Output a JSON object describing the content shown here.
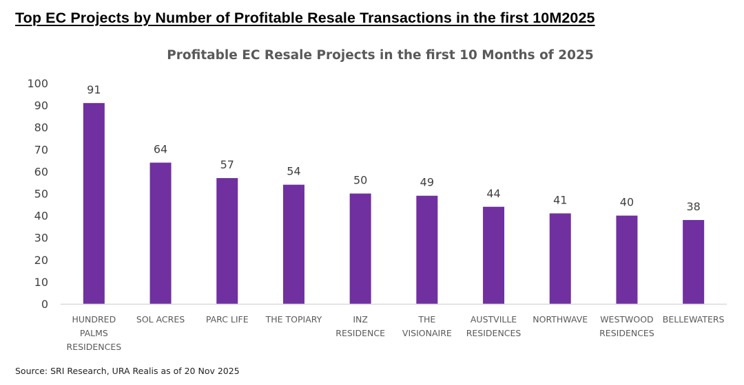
{
  "page_title": "Top EC Projects by Number of Profitable Resale Transactions in the first 10M2025",
  "source": "Source: SRI Research, URA Realis as of 20 Nov 2025",
  "colors": {
    "bar": "#7030a0",
    "axis": "#d9d9d9"
  },
  "chart_data": {
    "type": "bar",
    "title": "Profitable EC Resale Projects in the first 10 Months of 2025",
    "xlabel": "",
    "ylabel": "",
    "ylim": [
      0,
      100
    ],
    "yticks": [
      0,
      10,
      20,
      30,
      40,
      50,
      60,
      70,
      80,
      90,
      100
    ],
    "grid": false,
    "legend": "none",
    "categories": [
      "HUNDRED PALMS RESIDENCES",
      "SOL ACRES",
      "PARC LIFE",
      "THE TOPIARY",
      "INZ RESIDENCE",
      "THE VISIONAIRE",
      "AUSTVILLE RESIDENCES",
      "NORTHWAVE",
      "WESTWOOD RESIDENCES",
      "BELLEWATERS"
    ],
    "category_label_lines": [
      [
        "HUNDRED",
        "PALMS",
        "RESIDENCES"
      ],
      [
        "SOL ACRES"
      ],
      [
        "PARC LIFE"
      ],
      [
        "THE TOPIARY"
      ],
      [
        "INZ",
        "RESIDENCE"
      ],
      [
        "THE",
        "VISIONAIRE"
      ],
      [
        "AUSTVILLE",
        "RESIDENCES"
      ],
      [
        "NORTHWAVE"
      ],
      [
        "WESTWOOD",
        "RESIDENCES"
      ],
      [
        "BELLEWATERS"
      ]
    ],
    "values": [
      91,
      64,
      57,
      54,
      50,
      49,
      44,
      41,
      40,
      38
    ],
    "data_labels": true
  }
}
